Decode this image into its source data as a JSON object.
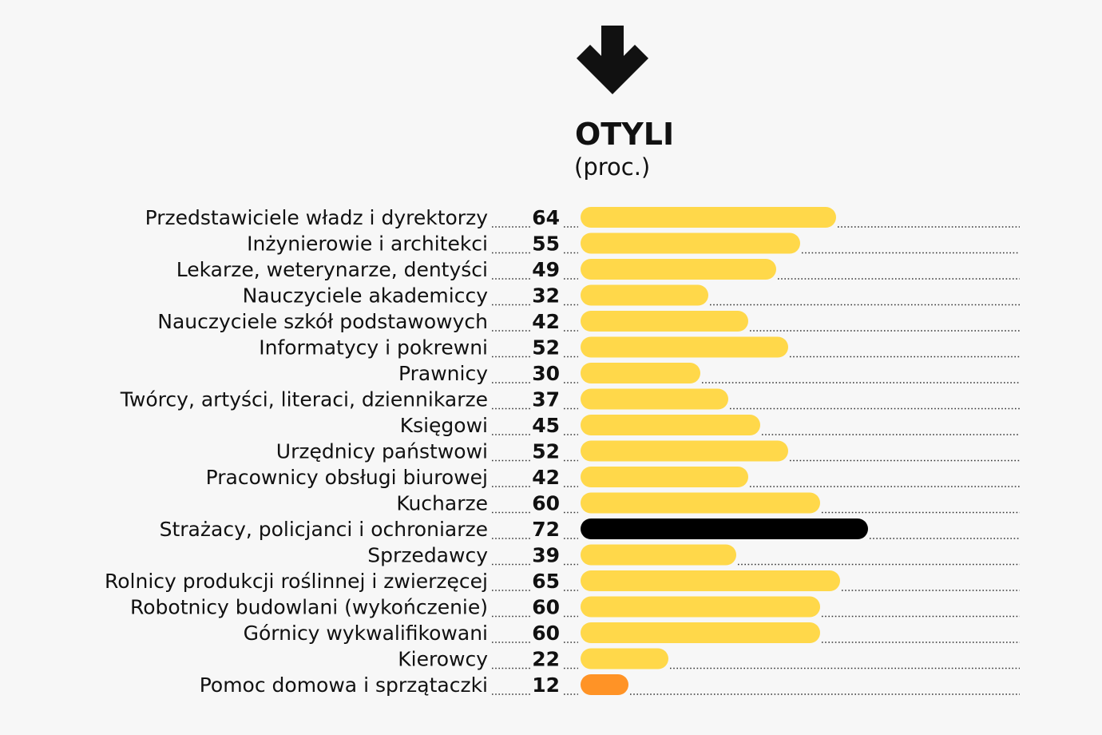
{
  "colors": {
    "default_bar": "#ffd84a",
    "highlight_max": "#000000",
    "highlight_min": "#ff9326",
    "text": "#111111",
    "background": "#f7f7f7"
  },
  "icon": "arrow-down-icon",
  "chart_data": {
    "type": "bar",
    "orientation": "horizontal",
    "title": "OTYLI",
    "subtitle": "(proc.)",
    "grid": false,
    "categories": [
      "Przedstawiciele władz i dyrektorzy",
      "Inżynierowie i architekci",
      "Lekarze, weterynarze, dentyści",
      "Nauczyciele akademiccy",
      "Nauczyciele szkół podstawowych",
      "Informatycy i pokrewni",
      "Prawnicy",
      "Twórcy, artyści, literaci, dziennikarze",
      "Księgowi",
      "Urzędnicy państwowi",
      "Pracownicy obsługi biurowej",
      "Kucharze",
      "Strażacy, policjanci i ochroniarze",
      "Sprzedawcy",
      "Rolnicy produkcji roślinnej i zwierzęcej",
      "Robotnicy budowlani (wykończenie)",
      "Górnicy wykwalifikowani",
      "Kierowcy",
      "Pomoc domowa i sprzątaczki"
    ],
    "values": [
      64,
      55,
      49,
      32,
      42,
      52,
      30,
      37,
      45,
      52,
      42,
      60,
      72,
      39,
      65,
      60,
      60,
      22,
      12
    ]
  }
}
